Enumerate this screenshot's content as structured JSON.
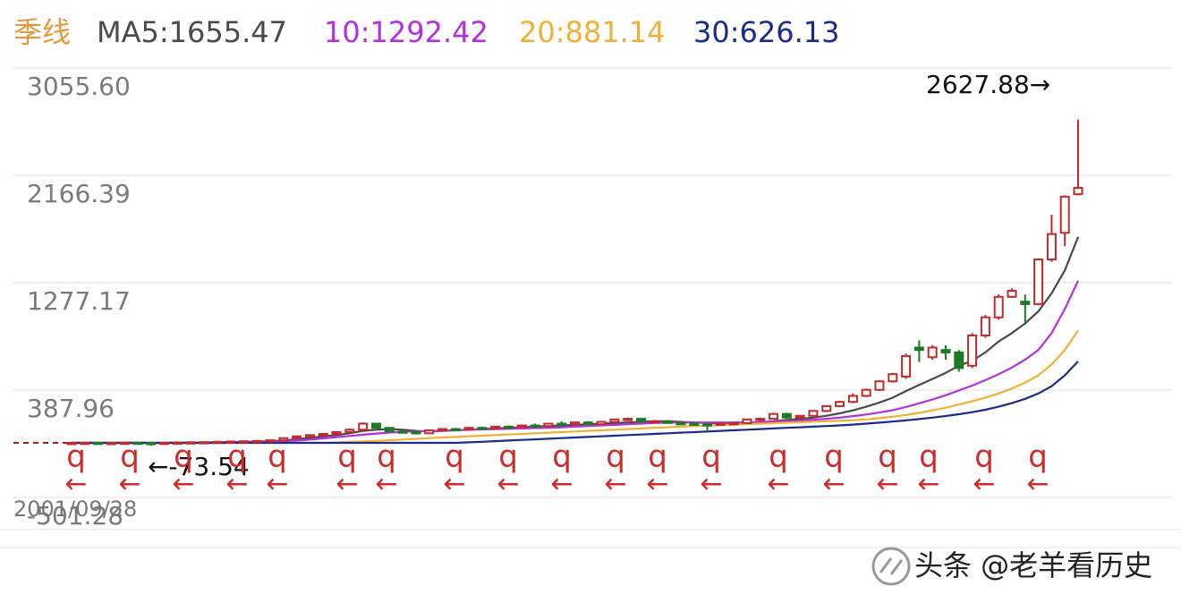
{
  "chart_data": {
    "type": "candlestick",
    "title": "季线",
    "categories": [
      "2001/09/28",
      null,
      null,
      null,
      null,
      null,
      null,
      null,
      null,
      null,
      null,
      null,
      null,
      null,
      null,
      null,
      null,
      null,
      null,
      null,
      null,
      null,
      null,
      null,
      null,
      null,
      null,
      null,
      null,
      null,
      null,
      null,
      null,
      null,
      null,
      null,
      null,
      null,
      null,
      null,
      null,
      null,
      null,
      null,
      null,
      null,
      null,
      null,
      null,
      null,
      null,
      null,
      null,
      null,
      null,
      null,
      null,
      null,
      null,
      null,
      null,
      null,
      null,
      null,
      null,
      null,
      null,
      null,
      null,
      null,
      null,
      null,
      null,
      null,
      null,
      null,
      null
    ],
    "open": [
      -50,
      -49,
      -48,
      -50,
      -49,
      -47,
      -50,
      -52,
      -48,
      -46,
      -44,
      -43,
      -40,
      -38,
      -36,
      -33,
      -28,
      -10,
      5,
      15,
      25,
      40,
      60,
      110,
      75,
      45,
      40,
      30,
      55,
      65,
      60,
      75,
      70,
      85,
      80,
      95,
      90,
      110,
      105,
      120,
      105,
      125,
      145,
      150,
      125,
      130,
      115,
      110,
      105,
      100,
      110,
      115,
      145,
      150,
      190,
      160,
      175,
      215,
      255,
      290,
      340,
      390,
      460,
      500,
      740,
      660,
      720,
      700,
      590,
      840,
      990,
      1160,
      1120,
      1100,
      1470,
      1690,
      2010
    ],
    "high": [
      -48,
      -47,
      -46,
      -47,
      -45,
      -44,
      -46,
      -45,
      -43,
      -42,
      -40,
      -38,
      -35,
      -33,
      -30,
      -25,
      -5,
      10,
      20,
      30,
      45,
      70,
      120,
      115,
      80,
      55,
      50,
      60,
      70,
      75,
      80,
      85,
      90,
      95,
      100,
      110,
      115,
      130,
      125,
      130,
      130,
      150,
      160,
      155,
      140,
      140,
      125,
      120,
      115,
      115,
      120,
      150,
      160,
      200,
      200,
      180,
      220,
      260,
      300,
      360,
      400,
      470,
      530,
      690,
      800,
      760,
      760,
      720,
      860,
      1010,
      1180,
      1230,
      1180,
      1480,
      1840,
      2000,
      2627.88
    ],
    "low": [
      -52,
      -51,
      -52,
      -53,
      -55,
      -60,
      -73.54,
      -56,
      -51,
      -50,
      -48,
      -47,
      -45,
      -42,
      -40,
      -38,
      -30,
      -12,
      0,
      10,
      20,
      35,
      55,
      70,
      40,
      30,
      20,
      25,
      50,
      55,
      55,
      65,
      65,
      75,
      75,
      85,
      85,
      100,
      95,
      100,
      100,
      120,
      130,
      120,
      110,
      110,
      100,
      95,
      55,
      95,
      100,
      110,
      130,
      145,
      150,
      150,
      170,
      205,
      245,
      280,
      330,
      380,
      450,
      480,
      620,
      640,
      640,
      540,
      570,
      820,
      970,
      1150,
      940,
      1090,
      1450,
      1580,
      2000
    ],
    "close": [
      -49,
      -48,
      -50,
      -49,
      -47,
      -50,
      -52,
      -48,
      -46,
      -44,
      -43,
      -40,
      -38,
      -36,
      -33,
      -28,
      -10,
      5,
      15,
      25,
      40,
      60,
      110,
      75,
      45,
      40,
      30,
      55,
      65,
      60,
      75,
      70,
      85,
      80,
      95,
      90,
      110,
      105,
      120,
      105,
      125,
      145,
      150,
      125,
      130,
      115,
      110,
      105,
      100,
      110,
      115,
      145,
      150,
      190,
      160,
      175,
      215,
      255,
      290,
      340,
      390,
      460,
      520,
      670,
      720,
      740,
      700,
      570,
      840,
      990,
      1160,
      1210,
      1100,
      1470,
      1680,
      1990,
      2063
    ],
    "up_color": "#c42a2a",
    "down_color": "#1d7a22",
    "series": [
      {
        "name": "MA5:1655.47",
        "color": "#4a4a4a",
        "values": [
          -49,
          -49,
          -49,
          -49,
          -49,
          -49,
          -49,
          -49,
          -48,
          -47,
          -46,
          -44,
          -42,
          -40,
          -38,
          -35,
          -30,
          -20,
          -8,
          5,
          15,
          30,
          50,
          60,
          65,
          60,
          50,
          45,
          50,
          55,
          60,
          65,
          70,
          75,
          80,
          85,
          90,
          95,
          100,
          105,
          110,
          115,
          120,
          125,
          130,
          130,
          125,
          120,
          115,
          112,
          110,
          115,
          120,
          130,
          140,
          150,
          160,
          175,
          195,
          220,
          250,
          285,
          325,
          380,
          430,
          480,
          530,
          590,
          630,
          700,
          790,
          860,
          940,
          1040,
          1190,
          1380,
          1655.47
        ]
      },
      {
        "name": "10:1292.42",
        "color": "#b52ee0",
        "values": [
          -49,
          -49,
          -49,
          -49,
          -49,
          -49,
          -49,
          -49,
          -49,
          -49,
          -48,
          -47,
          -46,
          -44,
          -42,
          -40,
          -36,
          -30,
          -22,
          -12,
          -2,
          8,
          18,
          28,
          36,
          42,
          45,
          48,
          52,
          56,
          60,
          62,
          64,
          67,
          70,
          73,
          76,
          80,
          85,
          90,
          95,
          100,
          105,
          110,
          115,
          118,
          120,
          120,
          120,
          120,
          120,
          120,
          122,
          125,
          130,
          135,
          142,
          150,
          160,
          172,
          186,
          202,
          222,
          248,
          278,
          310,
          345,
          385,
          425,
          470,
          520,
          575,
          640,
          720,
          860,
          1060,
          1292.42
        ]
      },
      {
        "name": "20:881.14",
        "color": "#f0b035",
        "values": [
          -49,
          -49,
          -49,
          -49,
          -49,
          -49,
          -49,
          -49,
          -49,
          -49,
          -49,
          -49,
          -49,
          -49,
          -49,
          -49,
          -49,
          -49,
          -49,
          -49,
          -46,
          -42,
          -38,
          -33,
          -28,
          -22,
          -16,
          -10,
          -5,
          0,
          5,
          10,
          15,
          20,
          25,
          30,
          35,
          40,
          45,
          50,
          55,
          60,
          65,
          70,
          75,
          80,
          85,
          90,
          94,
          98,
          102,
          106,
          110,
          114,
          118,
          122,
          126,
          130,
          134,
          138,
          145,
          155,
          167,
          182,
          200,
          220,
          242,
          268,
          295,
          325,
          360,
          400,
          450,
          510,
          600,
          720,
          881.14
        ]
      },
      {
        "name": "30:626.13",
        "color": "#1c2a8c",
        "values": [
          -49,
          -49,
          -49,
          -49,
          -49,
          -49,
          -49,
          -49,
          -49,
          -49,
          -49,
          -49,
          -49,
          -49,
          -49,
          -49,
          -49,
          -49,
          -49,
          -49,
          -49,
          -49,
          -49,
          -49,
          -49,
          -49,
          -49,
          -49,
          -49,
          -49,
          -45,
          -40,
          -35,
          -30,
          -25,
          -20,
          -15,
          -10,
          -5,
          0,
          5,
          10,
          15,
          20,
          25,
          30,
          35,
          40,
          45,
          50,
          55,
          60,
          65,
          70,
          75,
          80,
          85,
          90,
          95,
          102,
          110,
          118,
          127,
          137,
          148,
          160,
          173,
          188,
          205,
          225,
          250,
          280,
          315,
          360,
          420,
          510,
          626.13
        ]
      }
    ],
    "ylim": [
      -501.28,
      3055.6
    ],
    "yticks": [
      {
        "value": 3055.6,
        "label": "3055.60"
      },
      2166.39,
      1277.17,
      387.96,
      -501.28
    ],
    "grid": true,
    "annotations": [
      "2627.88→",
      "←-73.54"
    ],
    "signal_label": "q",
    "signal_arrow": "←",
    "watermark": "头条 @老羊看历史"
  }
}
